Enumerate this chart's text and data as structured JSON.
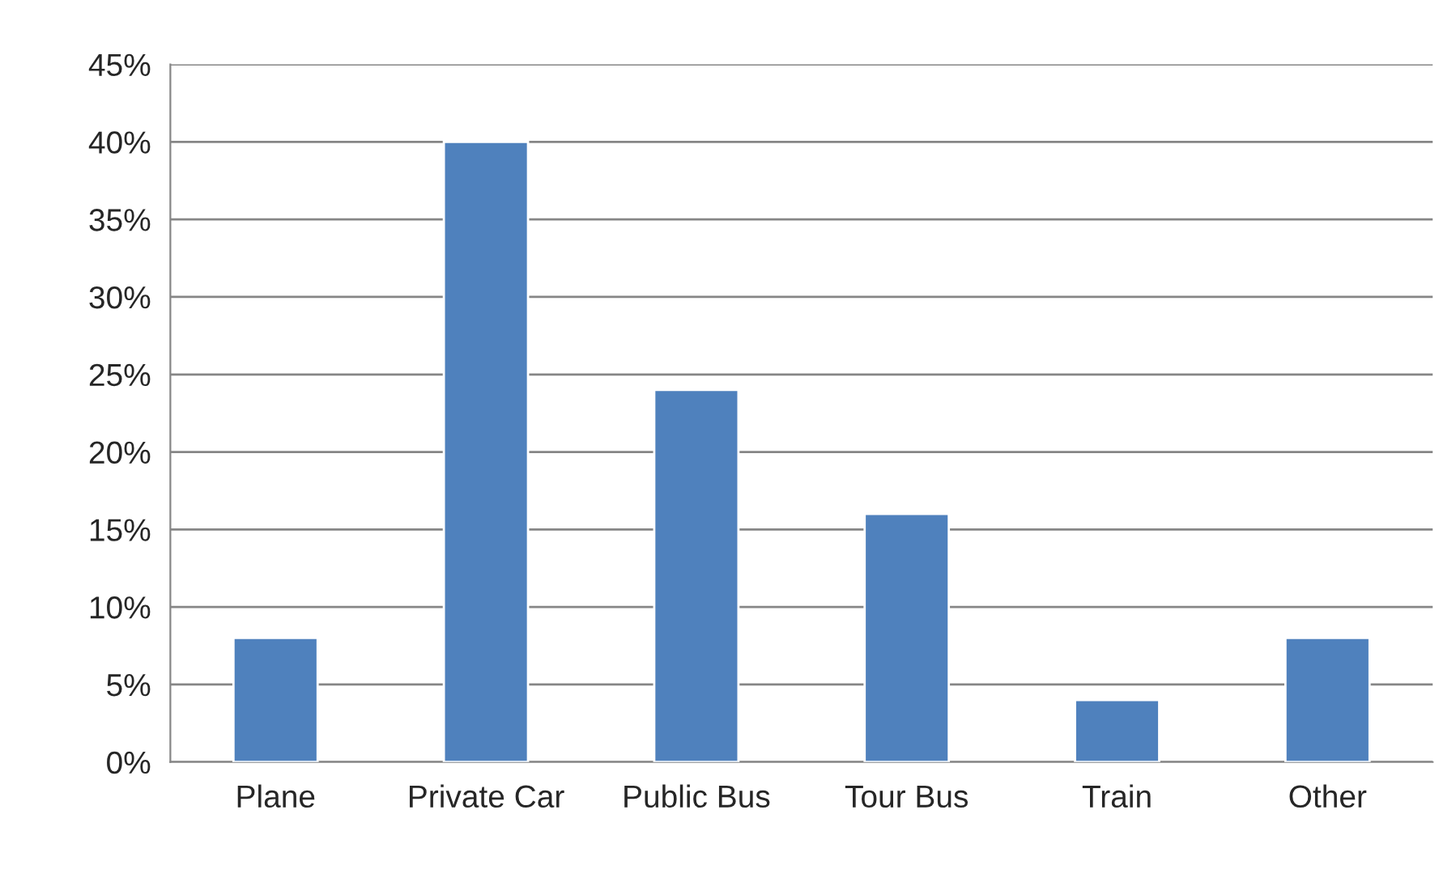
{
  "chart_data": {
    "type": "bar",
    "categories": [
      "Plane",
      "Private Car",
      "Public Bus",
      "Tour Bus",
      "Train",
      "Other"
    ],
    "values": [
      8,
      40,
      24,
      16,
      4,
      8
    ],
    "color": "#4f81bd",
    "ylim": [
      0,
      45
    ],
    "yticks": [
      {
        "value": 0,
        "label": "0%"
      },
      {
        "value": 5,
        "label": "5%"
      },
      {
        "value": 10,
        "label": "10%"
      },
      {
        "value": 15,
        "label": "15%"
      },
      {
        "value": 20,
        "label": "20%"
      },
      {
        "value": 25,
        "label": "25%"
      },
      {
        "value": 30,
        "label": "30%"
      },
      {
        "value": 35,
        "label": "35%"
      },
      {
        "value": 40,
        "label": "40%"
      },
      {
        "value": 45,
        "label": "45%"
      }
    ],
    "grid": "y",
    "legend": false
  }
}
